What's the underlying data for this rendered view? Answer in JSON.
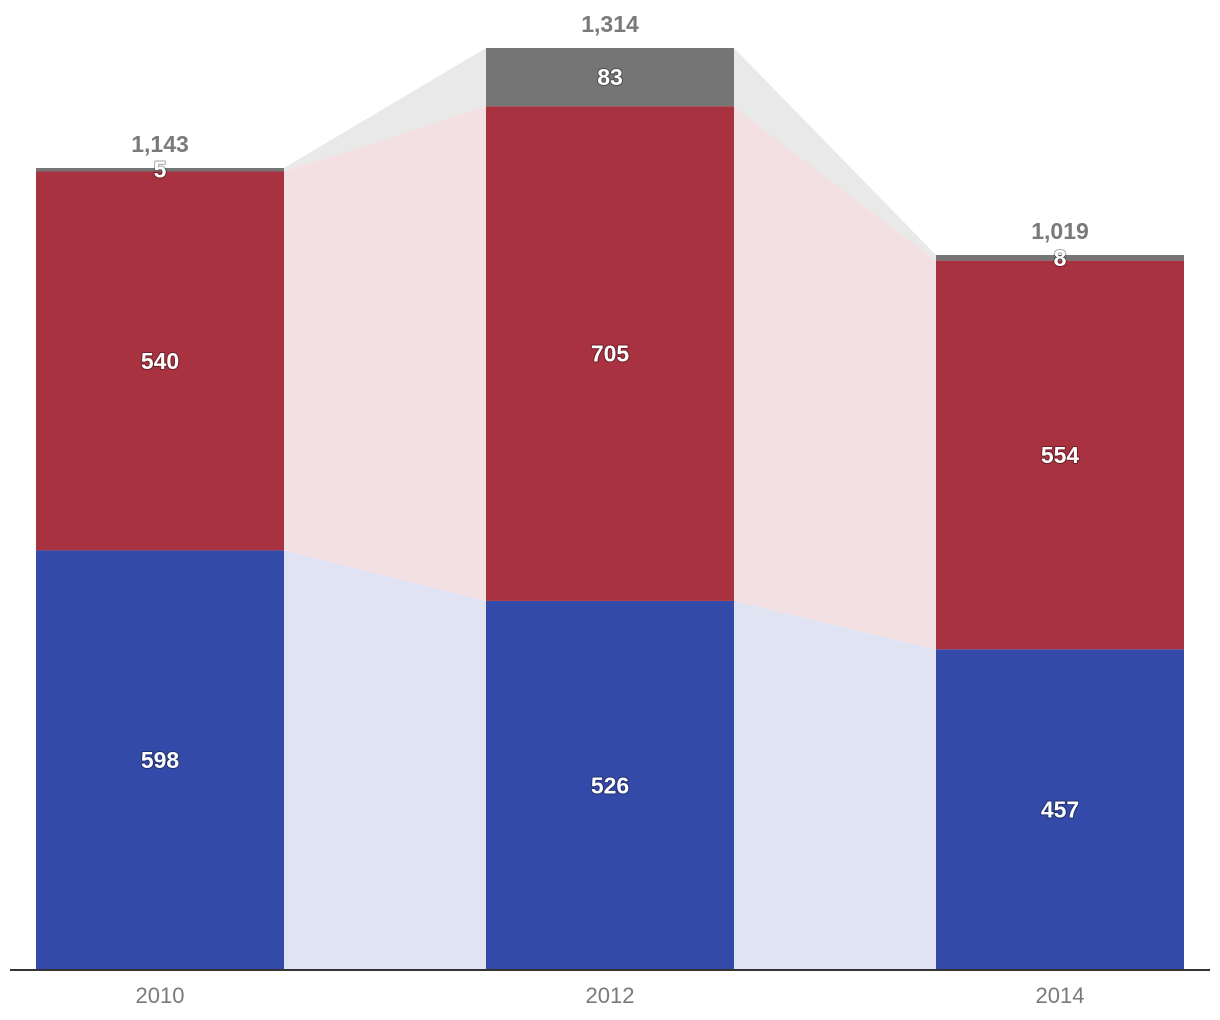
{
  "chart_data": {
    "type": "bar",
    "stacked": true,
    "categories": [
      "2010",
      "2012",
      "2014"
    ],
    "series": [
      {
        "values": [
          598,
          526,
          457
        ],
        "color": "#334aa8"
      },
      {
        "values": [
          540,
          705,
          554
        ],
        "color": "#a83240"
      },
      {
        "values": [
          5,
          83,
          8
        ],
        "color": "#757575"
      }
    ],
    "totals": [
      "1,143",
      "1,314",
      "1,019"
    ],
    "connector_colors": [
      "#e0e4f2",
      "#f3e0e2",
      "#e9e9e9"
    ],
    "axis_color": "#333333",
    "grid": false,
    "legend": "none",
    "ylim": [
      0,
      1314
    ]
  }
}
